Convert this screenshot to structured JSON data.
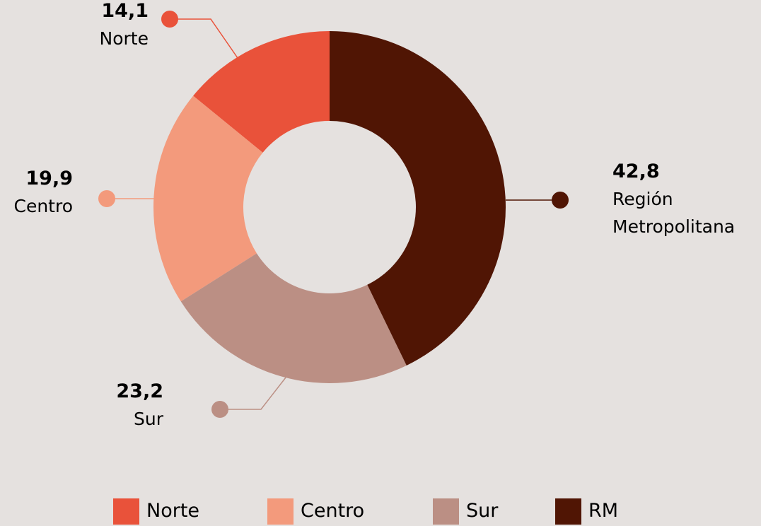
{
  "chart_data": {
    "type": "donut",
    "categories": [
      "Norte",
      "Centro",
      "Sur",
      "RM"
    ],
    "labels": [
      "Norte",
      "Centro",
      "Sur",
      "Región Metropolitana"
    ],
    "values": [
      14.1,
      19.9,
      23.2,
      42.8
    ],
    "value_labels": [
      "14,1",
      "19,9",
      "23,2",
      "42,8"
    ],
    "colors": [
      "#e9523a",
      "#f39a7c",
      "#bb8f84",
      "#501504"
    ],
    "legend": "bottom"
  }
}
